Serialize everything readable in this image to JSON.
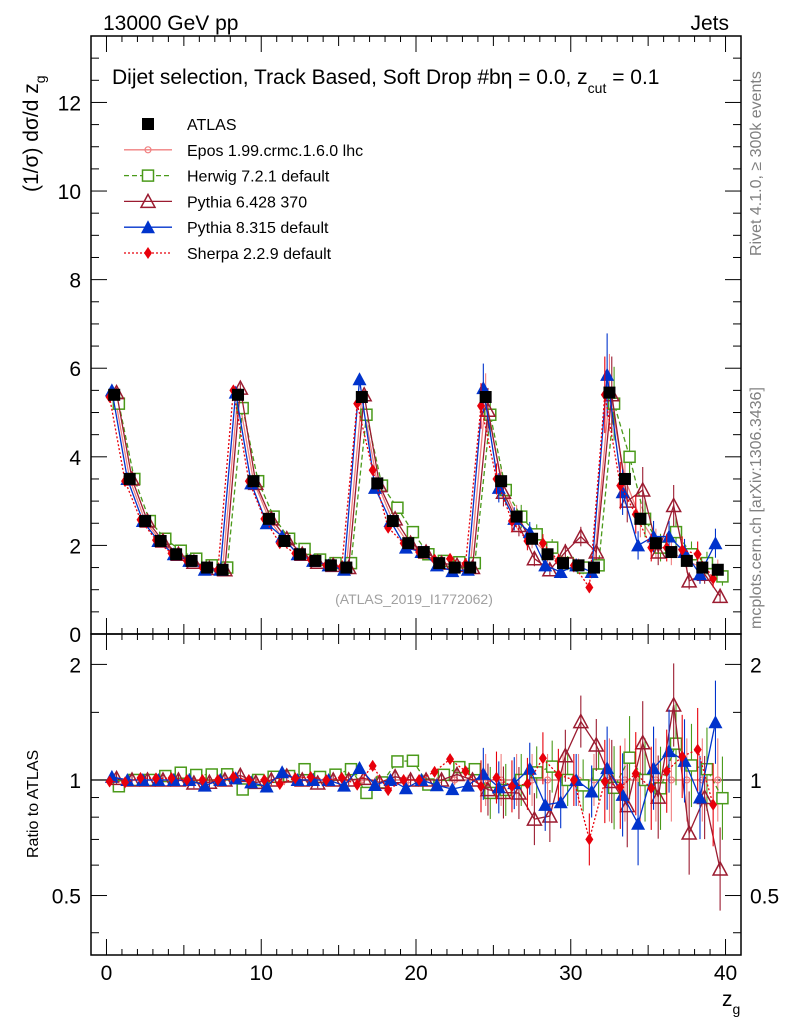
{
  "header": {
    "left": "13000 GeV pp",
    "right": "Jets",
    "side_top": "Rivet 4.1.0, ≥ 300k events",
    "side_bottom": "mcplots.cern.ch [arXiv:1306.3436]",
    "watermark": "(ATLAS_2019_I1772062)"
  },
  "plot_title": {
    "main": "Dijet selection, Track Based, Soft Drop #b",
    "eta": "η = 0.0, z",
    "sub": "cut",
    "tail": " = 0.1"
  },
  "axes": {
    "ylabel_top": "(1/σ) dσ/d z",
    "ylabel_top_sub": "g",
    "ylabel_ratio": "Ratio to ATLAS",
    "xlabel": "z",
    "xlabel_sub": "g"
  },
  "colors": {
    "data": "#000000",
    "epos": "#f08080",
    "herwig": "#4a9a1a",
    "pythia6": "#9b1b30",
    "pythia8": "#0033cc",
    "sherpa": "#e8000b"
  },
  "chart_data": {
    "type": "scatter",
    "x": [
      0.5,
      1.5,
      2.5,
      3.5,
      4.5,
      5.5,
      6.5,
      7.5,
      8.5,
      9.5,
      10.5,
      11.5,
      12.5,
      13.5,
      14.5,
      15.5,
      16.5,
      17.5,
      18.5,
      19.5,
      20.5,
      21.5,
      22.5,
      23.5,
      24.5,
      25.5,
      26.5,
      27.5,
      28.5,
      29.5,
      30.5,
      31.5,
      32.5,
      33.5,
      34.5,
      35.5,
      36.5,
      37.5,
      38.5,
      39.5
    ],
    "xlim": [
      -1,
      41
    ],
    "ylim": [
      0,
      13.5
    ],
    "ratio_ylim": [
      0.35,
      2.4
    ],
    "x_ticks": [
      0,
      10,
      20,
      30,
      40
    ],
    "y_ticks": [
      0,
      2,
      4,
      6,
      8,
      10,
      12
    ],
    "ratio_ticks": [
      0.5,
      1,
      2
    ],
    "legend": [
      "ATLAS",
      "Epos 1.99.crmc.1.6.0 lhc",
      "Herwig 7.2.1 default",
      "Pythia 6.428 370",
      "Pythia 8.315 default",
      "Sherpa 2.2.9 default"
    ],
    "series": [
      {
        "name": "ATLAS",
        "key": "data",
        "marker": "square-filled",
        "values": [
          5.4,
          3.5,
          2.55,
          2.1,
          1.8,
          1.65,
          1.5,
          1.45,
          5.4,
          3.45,
          2.6,
          2.1,
          1.8,
          1.65,
          1.55,
          1.5,
          5.35,
          3.4,
          2.55,
          2.05,
          1.85,
          1.6,
          1.5,
          1.5,
          5.35,
          3.45,
          2.65,
          2.15,
          1.8,
          1.6,
          1.55,
          1.5,
          5.45,
          3.5,
          2.6,
          2.05,
          1.85,
          1.65,
          1.5,
          1.45
        ]
      },
      {
        "name": "Epos 1.99.crmc.1.6.0 lhc",
        "key": "epos",
        "marker": "cross-circle",
        "values": [
          5.45,
          3.5,
          2.55,
          2.1,
          1.8,
          1.65,
          1.5,
          1.45,
          5.45,
          3.45,
          2.6,
          2.1,
          1.8,
          1.65,
          1.55,
          1.5,
          5.35,
          3.4,
          2.55,
          2.05,
          1.85,
          1.6,
          1.5,
          1.5,
          5.35,
          3.45,
          2.65,
          2.15,
          1.8,
          1.6,
          1.55,
          1.5,
          5.45,
          3.5,
          2.6,
          2.05,
          1.85,
          1.65,
          1.5,
          1.45
        ]
      },
      {
        "name": "Herwig 7.2.1 default",
        "key": "herwig",
        "marker": "square-open",
        "values": [
          5.2,
          3.5,
          2.55,
          2.15,
          1.88,
          1.7,
          1.55,
          1.5,
          5.1,
          3.45,
          2.65,
          2.15,
          1.92,
          1.68,
          1.6,
          1.6,
          4.95,
          3.35,
          2.85,
          2.3,
          1.8,
          1.65,
          1.62,
          1.6,
          4.95,
          3.25,
          2.65,
          2.25,
          1.95,
          1.6,
          1.5,
          1.55,
          5.2,
          4.0,
          2.6,
          1.95,
          2.3,
          1.8,
          1.6,
          1.3
        ]
      },
      {
        "name": "Pythia 6.428 370",
        "key": "pythia6",
        "marker": "triangle-open",
        "values": [
          5.45,
          3.5,
          2.55,
          2.1,
          1.8,
          1.62,
          1.48,
          1.45,
          5.55,
          3.4,
          2.6,
          2.15,
          1.8,
          1.62,
          1.55,
          1.5,
          5.4,
          3.35,
          2.6,
          2.05,
          1.85,
          1.6,
          1.55,
          1.5,
          5.05,
          3.2,
          2.45,
          1.7,
          1.45,
          1.85,
          2.2,
          1.85,
          5.4,
          3.0,
          3.25,
          1.85,
          2.9,
          1.2,
          1.35,
          0.85
        ]
      },
      {
        "name": "Pythia 8.315 default",
        "key": "pythia8",
        "marker": "triangle-filled",
        "values": [
          5.5,
          3.5,
          2.55,
          2.1,
          1.8,
          1.65,
          1.45,
          1.45,
          5.45,
          3.4,
          2.5,
          2.2,
          1.8,
          1.65,
          1.55,
          1.45,
          5.75,
          3.3,
          2.55,
          1.95,
          1.85,
          1.55,
          1.42,
          1.45,
          5.55,
          3.3,
          2.6,
          2.3,
          1.55,
          1.4,
          1.55,
          1.4,
          5.85,
          3.2,
          2.0,
          2.2,
          2.2,
          1.85,
          1.35,
          2.05
        ]
      },
      {
        "name": "Sherpa 2.2.9 default",
        "key": "sherpa",
        "marker": "diamond-filled",
        "values": [
          5.35,
          3.45,
          2.58,
          2.12,
          1.82,
          1.65,
          1.5,
          1.45,
          5.5,
          3.45,
          2.6,
          2.05,
          1.82,
          1.68,
          1.55,
          1.52,
          5.2,
          3.7,
          2.4,
          2.05,
          1.85,
          1.68,
          1.7,
          1.58,
          5.15,
          3.5,
          2.55,
          2.1,
          2.05,
          1.65,
          1.55,
          1.05,
          5.4,
          3.35,
          2.7,
          1.95,
          1.95,
          1.9,
          1.8,
          1.25
        ]
      }
    ]
  }
}
